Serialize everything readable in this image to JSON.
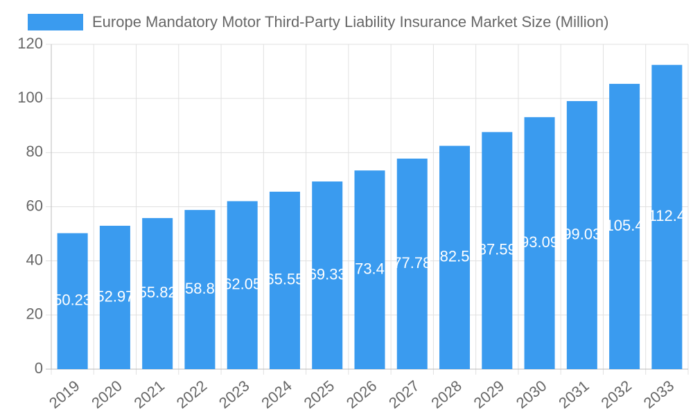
{
  "chart_data": {
    "type": "bar",
    "title": "Europe Mandatory Motor Third-Party Liability Insurance Market Size (Million)",
    "categories": [
      "2019",
      "2020",
      "2021",
      "2022",
      "2023",
      "2024",
      "2025",
      "2026",
      "2027",
      "2028",
      "2029",
      "2030",
      "2031",
      "2032",
      "2033"
    ],
    "series": [
      {
        "name": "Europe Mandatory Motor Third-Party Liability Insurance Market Size (Million)",
        "color": "#3a9bef",
        "values": [
          50.23,
          52.97,
          55.82,
          58.8,
          62.05,
          65.55,
          69.33,
          73.4,
          77.78,
          82.5,
          87.59,
          93.09,
          99.03,
          105.4,
          112.4
        ]
      }
    ],
    "ylim": [
      0,
      120
    ],
    "yticks": [
      0,
      20,
      40,
      60,
      80,
      100,
      120
    ],
    "grid": true
  }
}
